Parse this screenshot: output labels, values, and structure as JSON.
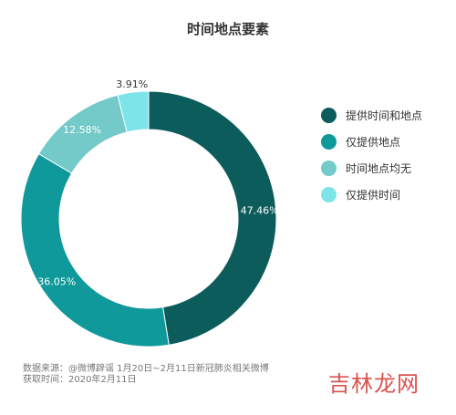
{
  "chart_data": {
    "type": "pie",
    "title": "时间地点要素",
    "categories": [
      "提供时间和地点",
      "仅提供地点",
      "时间地点均无",
      "仅提供时间"
    ],
    "values": [
      47.46,
      36.05,
      12.58,
      3.91
    ],
    "value_labels": [
      "47.46%",
      "36.05%",
      "12.58%",
      "3.91%"
    ],
    "colors": [
      "#0d5c5c",
      "#10999a",
      "#74c9c9",
      "#7de4e9"
    ],
    "label_colors": [
      "#ffffff",
      "#ffffff",
      "#ffffff",
      "#333333"
    ],
    "donut": true,
    "legend_position": "right"
  },
  "source": {
    "line1": "数据来源：@微博辟谣 1月20日~2月11日新冠肺炎相关微博",
    "line2": "获取时间：2020年2月11日"
  },
  "watermark": "吉林龙网"
}
